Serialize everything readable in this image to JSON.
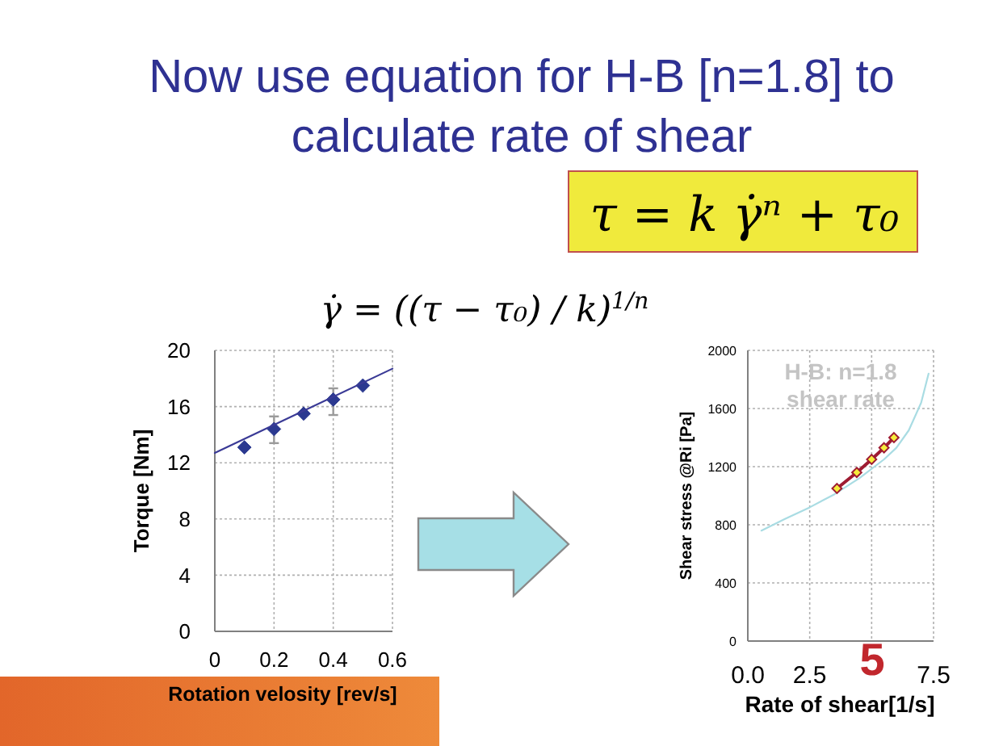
{
  "chart_data": [
    {
      "type": "other",
      "title": "Now use equation for H-B [n=1.8] to calculate rate of shear",
      "annotations": [
        "τ = k γ̇ⁿ + τ₀",
        "γ̇ = ((τ − τ₀) / k)$^{1/n}$",
        "5"
      ]
    },
    {
      "type": "scatter",
      "xlabel": "Rotation velosity [rev/s]",
      "ylabel": "Torque [Nm]",
      "xlim": [
        0,
        0.6
      ],
      "xticks": [
        0,
        0.2,
        0.4,
        0.6
      ],
      "ylim": [
        0,
        20
      ],
      "yticks": [
        0,
        4,
        8,
        12,
        16,
        20
      ],
      "grid": true,
      "series": [
        {
          "type": "scatter",
          "color": "#2b3990",
          "marker": "diamond",
          "x": [
            0.1,
            0.2,
            0.3,
            0.4,
            0.5
          ],
          "values": [
            13.1,
            14.4,
            15.5,
            16.5,
            17.5
          ],
          "errors": [
            null,
            [
              13.4,
              15.3
            ],
            null,
            [
              15.4,
              17.3
            ],
            null
          ]
        },
        {
          "type": "line",
          "color": "#3a3a96",
          "marker": "none",
          "x": [
            0,
            0.6
          ],
          "values": [
            12.7,
            18.7
          ]
        }
      ]
    },
    {
      "type": "line",
      "xlabel": "Rate of shear[1/s]",
      "ylabel": "Shear stress @Ri [Pa]",
      "annotations": [
        "H-B: n=1.8",
        "shear rate"
      ],
      "xlim": [
        0,
        7.5
      ],
      "xticks": [
        {
          "value": 0,
          "label": "0.0"
        },
        2.5,
        {
          "value": 5,
          "label": null
        },
        7.5
      ],
      "ylim": [
        0,
        2000
      ],
      "yticks": [
        0,
        400,
        800,
        1200,
        1600,
        2000
      ],
      "grid": true,
      "series": [
        {
          "type": "line",
          "color": "#a9dce3",
          "marker": "none",
          "x": [
            0.55,
            1.5,
            2.5,
            3.5,
            4.5,
            5.5,
            6.0,
            6.5,
            7.0,
            7.3
          ],
          "values": [
            760,
            840,
            920,
            1010,
            1120,
            1250,
            1330,
            1450,
            1640,
            1840
          ]
        },
        {
          "type": "line",
          "color": "#9e1b32",
          "marker": "diamond",
          "x": [
            3.6,
            4.4,
            5.0,
            5.5,
            5.9
          ],
          "values": [
            1050,
            1160,
            1250,
            1330,
            1400
          ]
        }
      ]
    }
  ]
}
